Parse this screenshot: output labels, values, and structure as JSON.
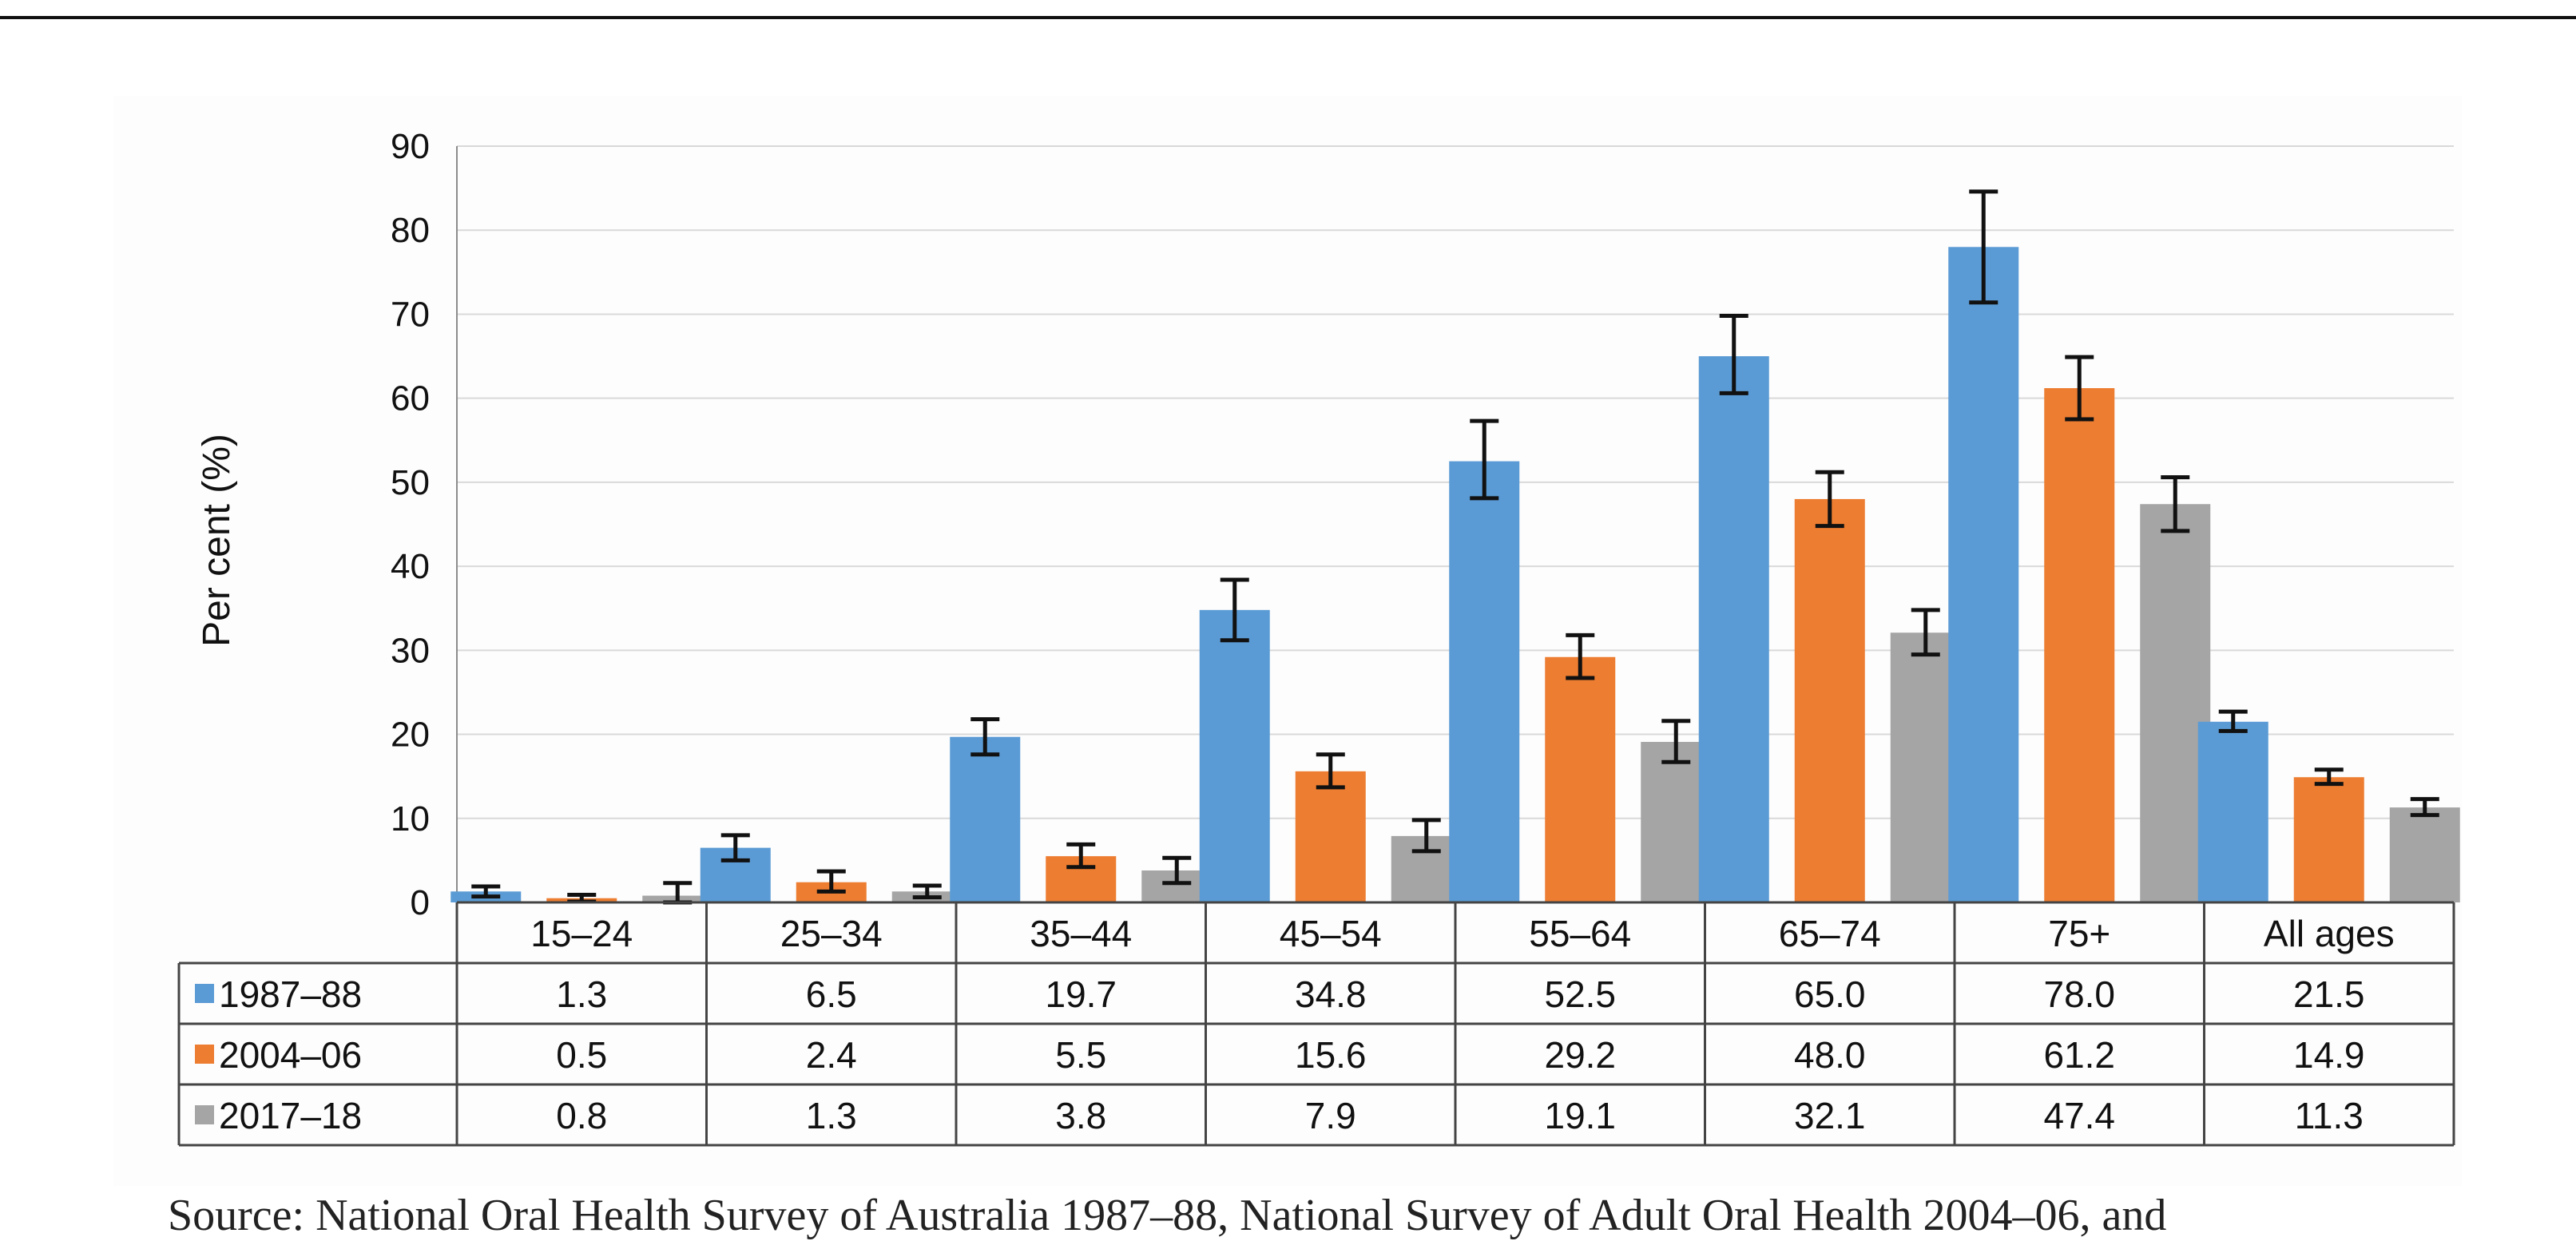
{
  "chart_data": {
    "type": "bar",
    "ylabel": "Per cent (%)",
    "ylim": [
      0,
      90
    ],
    "yticks": [
      0,
      10,
      20,
      30,
      40,
      50,
      60,
      70,
      80,
      90
    ],
    "grid": true,
    "legend": "data-table-below",
    "categories": [
      "15–24",
      "25–34",
      "35–44",
      "45–54",
      "55–64",
      "65–74",
      "75+",
      "All ages"
    ],
    "series": [
      {
        "name": "1987–88",
        "color": "#5b9bd5",
        "values": [
          1.3,
          6.5,
          19.7,
          34.8,
          52.5,
          65.0,
          78.0,
          21.5
        ],
        "labels": [
          "1.3",
          "6.5",
          "19.7",
          "34.8",
          "52.5",
          "65.0",
          "78.0",
          "21.5"
        ],
        "error_low": [
          0.7,
          5.0,
          17.6,
          31.2,
          48.1,
          60.6,
          71.4,
          20.4
        ],
        "error_high": [
          1.9,
          8.0,
          21.8,
          38.4,
          57.3,
          69.8,
          84.6,
          22.7
        ]
      },
      {
        "name": "2004–06",
        "color": "#ed7d31",
        "values": [
          0.5,
          2.4,
          5.5,
          15.6,
          29.2,
          48.0,
          61.2,
          14.9
        ],
        "labels": [
          "0.5",
          "2.4",
          "5.5",
          "15.6",
          "29.2",
          "48.0",
          "61.2",
          "14.9"
        ],
        "error_low": [
          0.1,
          1.3,
          4.2,
          13.7,
          26.7,
          44.8,
          57.5,
          14.1
        ],
        "error_high": [
          0.9,
          3.7,
          6.9,
          17.6,
          31.8,
          51.2,
          64.9,
          15.8
        ]
      },
      {
        "name": "2017–18",
        "color": "#a5a5a5",
        "values": [
          0.8,
          1.3,
          3.8,
          7.9,
          19.1,
          32.1,
          47.4,
          11.3
        ],
        "labels": [
          "0.8",
          "1.3",
          "3.8",
          "7.9",
          "19.1",
          "32.1",
          "47.4",
          "11.3"
        ],
        "error_low": [
          0.0,
          0.6,
          2.3,
          6.1,
          16.7,
          29.5,
          44.2,
          10.4
        ],
        "error_high": [
          2.3,
          2.0,
          5.3,
          9.8,
          21.6,
          34.8,
          50.6,
          12.3
        ]
      }
    ]
  },
  "source": "Source: National Oral Health Survey of Australia 1987–88, National Survey of Adult Oral Health 2004–06, and"
}
